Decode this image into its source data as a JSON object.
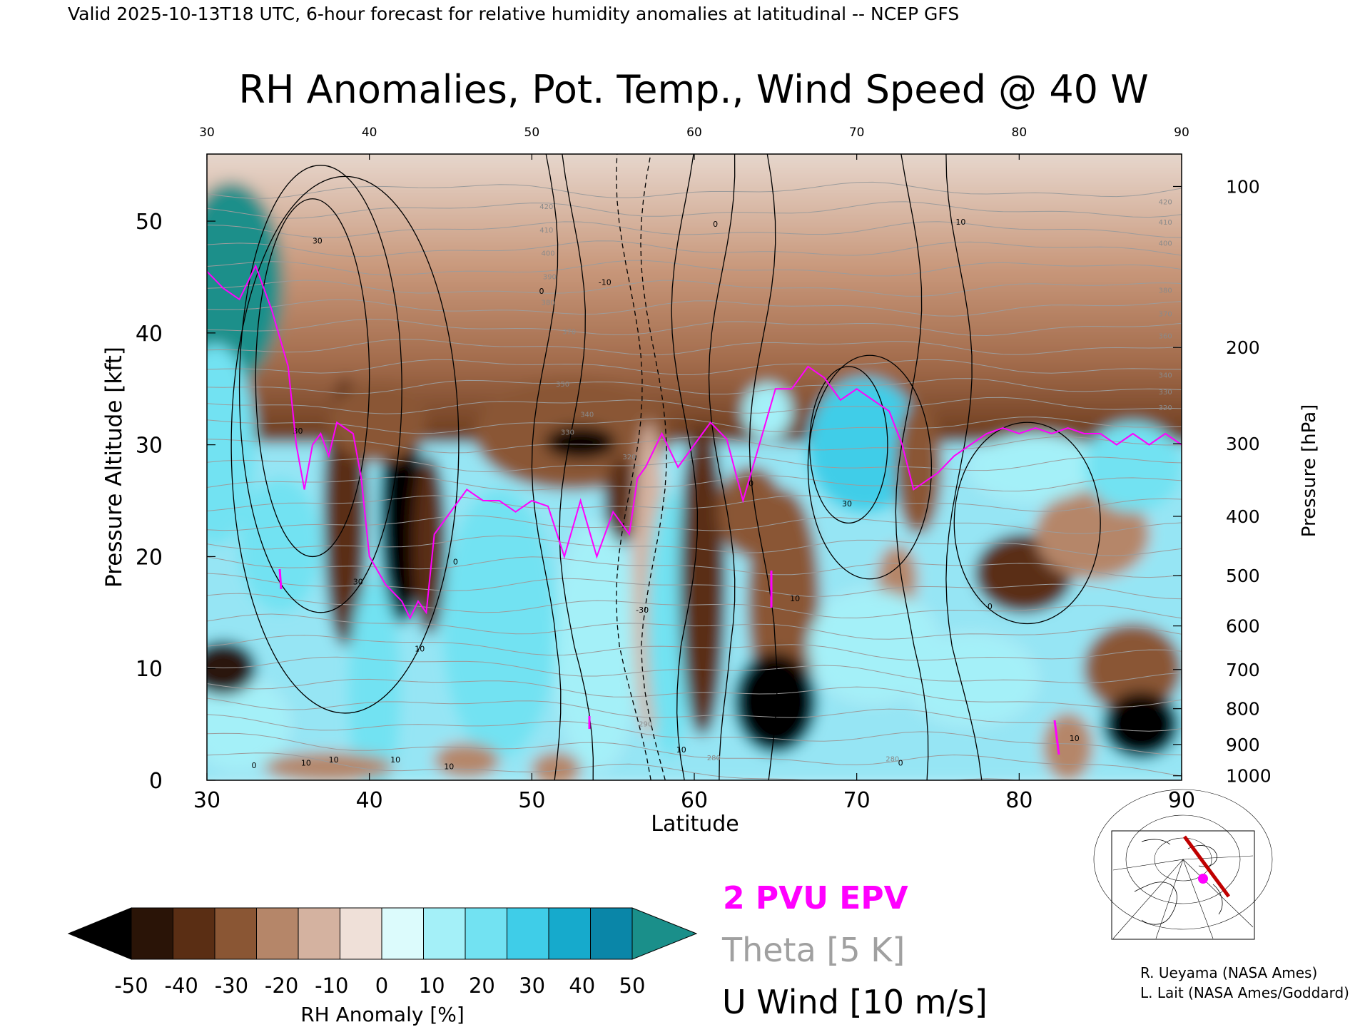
{
  "header_line": "Valid 2025-10-13T18 UTC, 6-hour forecast for relative humidity anomalies at latitudinal -- NCEP GFS",
  "credits": [
    "R. Ueyama (NASA Ames)",
    "L. Lait (NASA Ames/Goddard)"
  ],
  "legend": {
    "epv": {
      "label": "2 PVU EPV",
      "color": "#ff00ff"
    },
    "theta": {
      "label": "Theta [5 K]",
      "color": "#a0a0a0"
    },
    "uwind": {
      "label": "U Wind [10 m/s]",
      "color": "#000000"
    }
  },
  "colorbar": {
    "label": "RH Anomaly [%]",
    "ticks": [
      "-50",
      "-40",
      "-30",
      "-20",
      "-10",
      "0",
      "10",
      "20",
      "30",
      "40",
      "50"
    ],
    "under_color": "#000000",
    "over_color": "#1a8f8a",
    "bins": [
      "#2a1407",
      "#5a2e14",
      "#8a5634",
      "#b58669",
      "#d4b2a0",
      "#efe0d8",
      "#dcfbfc",
      "#a4f0f8",
      "#72e2f2",
      "#3fcde8",
      "#16aacc",
      "#0a86a8"
    ]
  },
  "chart_data": {
    "type": "heatmap",
    "title": "RH Anomalies, Pot. Temp., Wind Speed @ 40 W",
    "xlabel": "Latitude",
    "ylabel": "Pressure Altitude [kft]",
    "y2label": "Pressure [hPa]",
    "xlim": [
      30,
      90
    ],
    "ylim": [
      0,
      56
    ],
    "x_ticks": [
      30,
      40,
      50,
      60,
      70,
      80,
      90
    ],
    "y_ticks": [
      0,
      10,
      20,
      30,
      40,
      50
    ],
    "pressure_ticks": [
      {
        "label": "100",
        "kft": 53.1
      },
      {
        "label": "200",
        "kft": 38.7
      },
      {
        "label": "300",
        "kft": 30.1
      },
      {
        "label": "400",
        "kft": 23.6
      },
      {
        "label": "500",
        "kft": 18.3
      },
      {
        "label": "600",
        "kft": 13.8
      },
      {
        "label": "700",
        "kft": 9.9
      },
      {
        "label": "800",
        "kft": 6.4
      },
      {
        "label": "900",
        "kft": 3.2
      },
      {
        "label": "1000",
        "kft": 0.4
      }
    ],
    "theta_labels": [
      {
        "text": "420",
        "lat": 50.9,
        "kft": 51.1
      },
      {
        "text": "410",
        "lat": 50.9,
        "kft": 49.0
      },
      {
        "text": "400",
        "lat": 51.0,
        "kft": 46.9
      },
      {
        "text": "390",
        "lat": 51.1,
        "kft": 44.8
      },
      {
        "text": "380",
        "lat": 51.0,
        "kft": 42.5
      },
      {
        "text": "370",
        "lat": 52.3,
        "kft": 39.9
      },
      {
        "text": "350",
        "lat": 51.9,
        "kft": 35.2
      },
      {
        "text": "340",
        "lat": 53.4,
        "kft": 32.5
      },
      {
        "text": "330",
        "lat": 52.2,
        "kft": 30.9
      },
      {
        "text": "320",
        "lat": 56.0,
        "kft": 28.7
      },
      {
        "text": "290",
        "lat": 57.0,
        "kft": 4.8
      },
      {
        "text": "280",
        "lat": 61.2,
        "kft": 1.8
      },
      {
        "text": "280",
        "lat": 72.2,
        "kft": 1.7
      },
      {
        "text": "420",
        "lat": 89.0,
        "kft": 51.5
      },
      {
        "text": "410",
        "lat": 89.0,
        "kft": 49.7
      },
      {
        "text": "400",
        "lat": 89.0,
        "kft": 47.8
      },
      {
        "text": "380",
        "lat": 89.0,
        "kft": 43.6
      },
      {
        "text": "370",
        "lat": 89.0,
        "kft": 41.5
      },
      {
        "text": "360",
        "lat": 89.0,
        "kft": 39.5
      },
      {
        "text": "340",
        "lat": 89.0,
        "kft": 36.0
      },
      {
        "text": "330",
        "lat": 89.0,
        "kft": 34.5
      },
      {
        "text": "320",
        "lat": 89.0,
        "kft": 33.1
      }
    ],
    "wind_labels": [
      {
        "text": "30",
        "lat": 36.8,
        "kft": 48.0
      },
      {
        "text": "30",
        "lat": 35.6,
        "kft": 31.0
      },
      {
        "text": "30",
        "lat": 39.3,
        "kft": 17.5
      },
      {
        "text": "0",
        "lat": 45.3,
        "kft": 19.3
      },
      {
        "text": "-10",
        "lat": 54.5,
        "kft": 44.3
      },
      {
        "text": "0",
        "lat": 50.6,
        "kft": 43.5
      },
      {
        "text": "-30",
        "lat": 56.8,
        "kft": 15.0
      },
      {
        "text": "0",
        "lat": 61.3,
        "kft": 49.5
      },
      {
        "text": "0",
        "lat": 63.5,
        "kft": 26.3
      },
      {
        "text": "30",
        "lat": 69.4,
        "kft": 24.5
      },
      {
        "text": "10",
        "lat": 76.4,
        "kft": 49.7
      },
      {
        "text": "10",
        "lat": 66.2,
        "kft": 16.0
      },
      {
        "text": "0",
        "lat": 78.2,
        "kft": 15.3
      },
      {
        "text": "10",
        "lat": 59.2,
        "kft": 2.5
      },
      {
        "text": "10",
        "lat": 43.1,
        "kft": 11.5
      },
      {
        "text": "0",
        "lat": 32.9,
        "kft": 1.1
      },
      {
        "text": "10",
        "lat": 36.1,
        "kft": 1.3
      },
      {
        "text": "10",
        "lat": 37.8,
        "kft": 1.6
      },
      {
        "text": "10",
        "lat": 41.6,
        "kft": 1.6
      },
      {
        "text": "10",
        "lat": 44.9,
        "kft": 1.0
      },
      {
        "text": "0",
        "lat": 72.7,
        "kft": 1.3
      },
      {
        "text": "10",
        "lat": 83.4,
        "kft": 3.5
      },
      {
        "text": "10",
        "lat": 87.1,
        "kft": 4.9
      }
    ],
    "rh_anomaly_blobs": [
      {
        "lat": 31.5,
        "kft": 44.5,
        "rx": 3.2,
        "ry": 9.0,
        "value": 60
      },
      {
        "lat": 30.5,
        "kft": 30.0,
        "rx": 2.5,
        "ry": 9.0,
        "value": 35
      },
      {
        "lat": 34.5,
        "kft": 21.0,
        "rx": 2.5,
        "ry": 6.0,
        "value": 30
      },
      {
        "lat": 32.0,
        "kft": 5.0,
        "rx": 3.0,
        "ry": 4.0,
        "value": 25
      },
      {
        "lat": 31.0,
        "kft": 10.0,
        "rx": 2.0,
        "ry": 2.4,
        "value": -45
      },
      {
        "lat": 38.5,
        "kft": 24.0,
        "rx": 1.3,
        "ry": 12.0,
        "value": -35
      },
      {
        "lat": 42.0,
        "kft": 24.0,
        "rx": 1.3,
        "ry": 10.0,
        "value": -50
      },
      {
        "lat": 40.5,
        "kft": 32.0,
        "rx": 3.0,
        "ry": 3.5,
        "value": -30
      },
      {
        "lat": 43.7,
        "kft": 21.0,
        "rx": 1.0,
        "ry": 8.0,
        "value": -40
      },
      {
        "lat": 40.3,
        "kft": 8.0,
        "rx": 1.6,
        "ry": 10.0,
        "value": 30
      },
      {
        "lat": 48.0,
        "kft": 14.0,
        "rx": 3.5,
        "ry": 12.0,
        "value": 35
      },
      {
        "lat": 52.5,
        "kft": 31.0,
        "rx": 6.0,
        "ry": 5.0,
        "value": -30
      },
      {
        "lat": 53.0,
        "kft": 30.2,
        "rx": 2.2,
        "ry": 1.5,
        "value": -50
      },
      {
        "lat": 55.5,
        "kft": 25.0,
        "rx": 1.0,
        "ry": 4.0,
        "value": -40
      },
      {
        "lat": 54.0,
        "kft": 12.0,
        "rx": 2.5,
        "ry": 11.0,
        "value": 25
      },
      {
        "lat": 57.2,
        "kft": 18.0,
        "rx": 1.0,
        "ry": 14.0,
        "value": -10
      },
      {
        "lat": 58.5,
        "kft": 14.0,
        "rx": 1.4,
        "ry": 12.0,
        "value": 30
      },
      {
        "lat": 60.5,
        "kft": 18.0,
        "rx": 1.4,
        "ry": 14.0,
        "value": -35
      },
      {
        "lat": 63.5,
        "kft": 24.0,
        "rx": 2.0,
        "ry": 4.0,
        "value": -30
      },
      {
        "lat": 65.5,
        "kft": 16.0,
        "rx": 2.2,
        "ry": 10.0,
        "value": -25
      },
      {
        "lat": 65.0,
        "kft": 7.0,
        "rx": 2.5,
        "ry": 4.5,
        "value": -50
      },
      {
        "lat": 64.5,
        "kft": 33.0,
        "rx": 1.5,
        "ry": 2.5,
        "value": 25
      },
      {
        "lat": 70.5,
        "kft": 30.0,
        "rx": 3.5,
        "ry": 6.0,
        "value": 40
      },
      {
        "lat": 73.8,
        "kft": 28.0,
        "rx": 1.4,
        "ry": 6.0,
        "value": -30
      },
      {
        "lat": 72.5,
        "kft": 18.0,
        "rx": 1.2,
        "ry": 3.0,
        "value": -20
      },
      {
        "lat": 71.0,
        "kft": 12.0,
        "rx": 4.0,
        "ry": 5.0,
        "value": 25
      },
      {
        "lat": 77.0,
        "kft": 9.0,
        "rx": 4.0,
        "ry": 4.0,
        "value": 25
      },
      {
        "lat": 80.3,
        "kft": 18.5,
        "rx": 3.0,
        "ry": 3.5,
        "value": -40
      },
      {
        "lat": 84.5,
        "kft": 22.0,
        "rx": 3.5,
        "ry": 4.0,
        "value": -15
      },
      {
        "lat": 81.0,
        "kft": 28.0,
        "rx": 4.0,
        "ry": 3.0,
        "value": 20
      },
      {
        "lat": 87.0,
        "kft": 28.0,
        "rx": 3.0,
        "ry": 4.0,
        "value": 30
      },
      {
        "lat": 87.0,
        "kft": 10.0,
        "rx": 3.0,
        "ry": 4.0,
        "value": -30
      },
      {
        "lat": 87.5,
        "kft": 5.0,
        "rx": 2.3,
        "ry": 3.0,
        "value": -50
      },
      {
        "lat": 83.0,
        "kft": 3.0,
        "rx": 1.5,
        "ry": 3.0,
        "value": -20
      },
      {
        "lat": 37.5,
        "kft": 1.2,
        "rx": 4.0,
        "ry": 1.3,
        "value": -12
      },
      {
        "lat": 46.0,
        "kft": 1.8,
        "rx": 2.0,
        "ry": 1.5,
        "value": -15
      },
      {
        "lat": 51.5,
        "kft": 1.0,
        "rx": 1.5,
        "ry": 1.5,
        "value": -12
      }
    ],
    "epv_2pvu": [
      [
        30.0,
        45.5
      ],
      [
        31.0,
        44.0
      ],
      [
        32.0,
        43.0
      ],
      [
        33.0,
        46.0
      ],
      [
        34.0,
        42.0
      ],
      [
        35.0,
        37.0
      ],
      [
        35.5,
        30.0
      ],
      [
        36.0,
        26.0
      ],
      [
        36.5,
        30.0
      ],
      [
        37.0,
        31.0
      ],
      [
        37.5,
        29.0
      ],
      [
        38.0,
        32.0
      ],
      [
        39.0,
        31.0
      ],
      [
        39.5,
        27.0
      ],
      [
        40.0,
        20.0
      ],
      [
        41.0,
        17.5
      ],
      [
        42.0,
        16.0
      ],
      [
        42.5,
        14.5
      ],
      [
        43.0,
        16.0
      ],
      [
        43.5,
        15.0
      ],
      [
        44.0,
        22.0
      ],
      [
        45.0,
        24.0
      ],
      [
        46.0,
        26.0
      ],
      [
        47.0,
        25.0
      ],
      [
        48.0,
        25.0
      ],
      [
        49.0,
        24.0
      ],
      [
        50.0,
        25.0
      ],
      [
        51.0,
        24.5
      ],
      [
        52.0,
        20.0
      ],
      [
        53.0,
        25.0
      ],
      [
        54.0,
        20.0
      ],
      [
        55.0,
        24.0
      ],
      [
        56.0,
        22.0
      ],
      [
        56.5,
        27.0
      ],
      [
        57.0,
        28.0
      ],
      [
        58.0,
        31.0
      ],
      [
        59.0,
        28.0
      ],
      [
        60.0,
        30.0
      ],
      [
        61.0,
        32.0
      ],
      [
        62.0,
        30.5
      ],
      [
        63.0,
        25.0
      ],
      [
        64.0,
        30.0
      ],
      [
        65.0,
        35.0
      ],
      [
        66.0,
        35.0
      ],
      [
        67.0,
        37.0
      ],
      [
        68.0,
        36.0
      ],
      [
        69.0,
        34.0
      ],
      [
        70.0,
        35.0
      ],
      [
        71.0,
        34.0
      ],
      [
        72.0,
        33.0
      ],
      [
        72.8,
        30.0
      ],
      [
        73.5,
        26.0
      ],
      [
        75.0,
        27.5
      ],
      [
        76.0,
        29.0
      ],
      [
        77.0,
        30.0
      ],
      [
        78.0,
        31.0
      ],
      [
        79.0,
        31.5
      ],
      [
        80.0,
        31.0
      ],
      [
        81.0,
        31.5
      ],
      [
        82.0,
        31.0
      ],
      [
        83.0,
        31.5
      ],
      [
        84.0,
        31.0
      ],
      [
        85.0,
        31.0
      ],
      [
        86.0,
        30.0
      ],
      [
        87.0,
        31.0
      ],
      [
        88.0,
        30.0
      ],
      [
        89.0,
        31.0
      ],
      [
        90.0,
        30.0
      ]
    ]
  }
}
